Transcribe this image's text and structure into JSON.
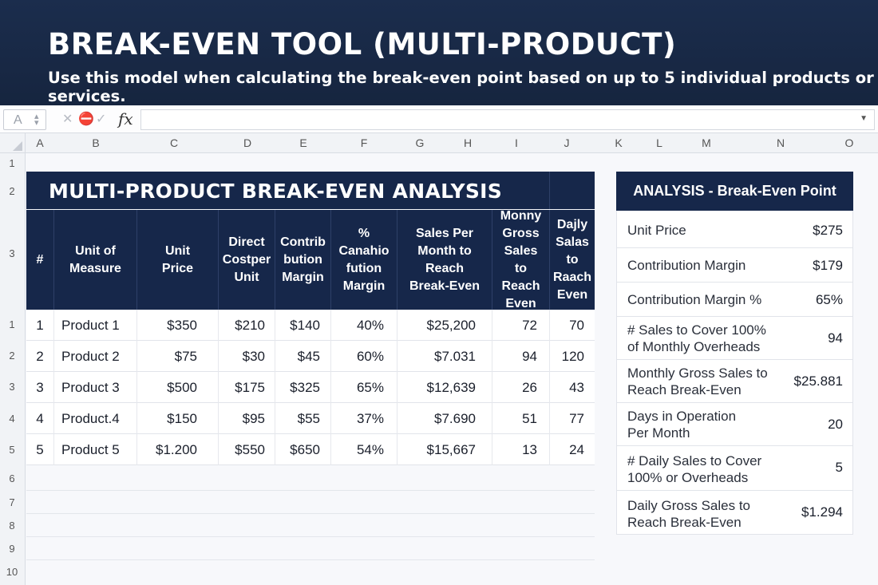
{
  "banner": {
    "title": "BREAK-EVEN TOOL (MULTI-PRODUCT)",
    "subtitle": "Use this model when calculating the break-even point based on up to 5 individual products or services."
  },
  "formula_bar": {
    "fx": "fx",
    "value": ""
  },
  "columns": [
    "A",
    "B",
    "C",
    "D",
    "E",
    "F",
    "G",
    "H",
    "I",
    "J",
    "K",
    "L",
    "M",
    "N",
    "O"
  ],
  "rows": [
    "1",
    "2",
    "3",
    "1",
    "2",
    "3",
    "4",
    "5",
    "6",
    "7",
    "8",
    "9",
    "10"
  ],
  "main_table": {
    "title": "MULTI-PRODUCT BREAK-EVEN ANALYSIS",
    "headers": [
      "#",
      "Unit of Measure",
      "Unit Price",
      "Direct Costper Unit",
      "Contrib bution Margin",
      "% Canahio fution Margin",
      "Sales Per Month to Reach Break-Even",
      "Monny Gross Sales to Reach Even",
      "Dajly Salas to Raach Even"
    ],
    "rows": [
      [
        "1",
        "Product 1",
        "$350",
        "$210",
        "$140",
        "40%",
        "$25,200",
        "72",
        "70"
      ],
      [
        "2",
        "Product 2",
        "$75",
        "$30",
        "$45",
        "60%",
        "$7.031",
        "94",
        "120"
      ],
      [
        "3",
        "Product 3",
        "$500",
        "$175",
        "$325",
        "65%",
        "$12,639",
        "26",
        "43"
      ],
      [
        "4",
        "Product.4",
        "$150",
        "$95",
        "$55",
        "37%",
        "$7.690",
        "51",
        "77"
      ],
      [
        "5",
        "Product 5",
        "$1.200",
        "$550",
        "$650",
        "54%",
        "$15,667",
        "13",
        "24"
      ]
    ]
  },
  "analysis": {
    "title": "ANALYSIS - Break-Even Point",
    "items": [
      {
        "label": "Unit Price",
        "value": "$275"
      },
      {
        "label": "Contribution Margin",
        "value": "$179"
      },
      {
        "label": "Contribution Margin %",
        "value": "65%"
      },
      {
        "label": "# Sales to Cover 100% of Monthly Overheads",
        "value": "94"
      },
      {
        "label": "Monthly Gross Sales to Reach Break-Even",
        "value": "$25.881"
      },
      {
        "label": "Days in Operation Per Month",
        "value": "20"
      },
      {
        "label": "# Daily Sales to Cover 100% or Overheads",
        "value": "5"
      },
      {
        "label": "Daily Gross Sales to Reach Break-Even",
        "value": "$1.294"
      }
    ]
  }
}
